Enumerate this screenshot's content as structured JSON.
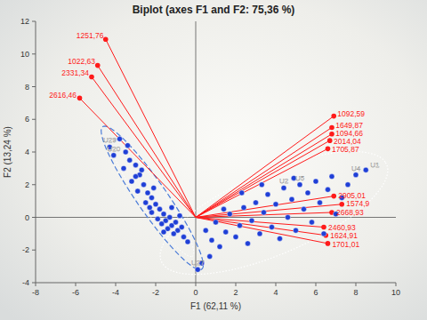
{
  "chart_data": {
    "type": "biplot",
    "title": "Biplot (axes F1 and F2: 75,36 %)",
    "x_label": "F1 (62,11 %)",
    "y_label": "F2 (13,24 %)",
    "xlim": [
      -8,
      10
    ],
    "xticks": [
      -8,
      -6,
      -4,
      -2,
      0,
      2,
      4,
      6,
      8,
      10
    ],
    "ylim": [
      -4,
      12
    ],
    "yticks": [
      -4,
      -2,
      0,
      2,
      4,
      6,
      8,
      10,
      12
    ],
    "grid": false,
    "color": "#1f3fd6",
    "marker": "circle",
    "x": [
      -4.3,
      -4.1,
      -3.8,
      -3.5,
      -3.3,
      -3.6,
      -3.0,
      -2.8,
      -3.2,
      -2.6,
      -2.9,
      -2.4,
      -2.2,
      -2.5,
      -2.0,
      -1.8,
      -2.2,
      -1.6,
      -1.9,
      -1.5,
      -1.3,
      -1.7,
      -1.2,
      -1.0,
      -1.4,
      -0.9,
      -0.7,
      -1.1,
      -0.6,
      -0.4,
      -2.7,
      -3.4,
      -1.2,
      -2.1,
      -0.8,
      -1.6,
      -3.0,
      -2.3,
      0.5,
      0.8,
      1.0,
      1.2,
      1.5,
      1.7,
      2.0,
      2.2,
      2.4,
      2.6,
      2.8,
      3.0,
      3.2,
      3.4,
      3.6,
      3.8,
      4.0,
      4.2,
      4.4,
      4.6,
      4.8,
      5.0,
      5.2,
      5.4,
      5.6,
      5.8,
      6.0,
      6.2,
      6.4,
      6.6,
      6.8,
      7.0,
      7.3,
      7.6,
      8.0,
      8.5,
      2.3,
      1.4,
      3.3,
      4.9,
      0.3,
      0.1,
      0.7
    ],
    "values": [
      4.3,
      3.8,
      4.8,
      4.0,
      3.5,
      3.0,
      3.2,
      2.6,
      2.2,
      2.0,
      1.6,
      1.5,
      1.2,
      0.9,
      0.8,
      0.5,
      0.3,
      0.2,
      -0.1,
      -0.2,
      0.0,
      -0.4,
      -0.5,
      -0.3,
      -0.7,
      -0.8,
      -0.6,
      -1.0,
      -1.2,
      -1.5,
      2.9,
      4.4,
      0.6,
      1.8,
      0.1,
      -0.9,
      2.5,
      0.6,
      -0.8,
      -1.4,
      -0.3,
      -1.8,
      -0.9,
      0.2,
      -1.2,
      -0.5,
      0.6,
      -1.6,
      -0.2,
      0.9,
      -1.0,
      0.3,
      1.4,
      -0.6,
      0.8,
      -1.3,
      1.8,
      0.0,
      1.1,
      -0.8,
      2.0,
      0.5,
      1.5,
      -0.3,
      2.2,
      0.9,
      -1.0,
      1.7,
      2.5,
      0.2,
      1.2,
      2.0,
      2.6,
      2.9,
      1.5,
      0.5,
      2.0,
      2.4,
      -2.8,
      -3.2,
      -2.4
    ],
    "point_labels": [
      "U29",
      "U20",
      null,
      null,
      null,
      null,
      null,
      null,
      null,
      null,
      null,
      null,
      null,
      null,
      null,
      null,
      null,
      null,
      null,
      null,
      null,
      null,
      null,
      null,
      null,
      null,
      null,
      null,
      null,
      null,
      null,
      null,
      null,
      null,
      null,
      null,
      null,
      null,
      null,
      null,
      null,
      null,
      null,
      null,
      null,
      null,
      null,
      null,
      null,
      null,
      null,
      null,
      null,
      null,
      null,
      null,
      "U2",
      null,
      null,
      null,
      "U5",
      null,
      null,
      null,
      null,
      null,
      null,
      null,
      null,
      null,
      null,
      null,
      "U4",
      "U1",
      null,
      null,
      null,
      null,
      null,
      "U27",
      null
    ],
    "vectors": {
      "color": "#ff1a1a",
      "labels": [
        "1251,76",
        "1022,63",
        "2331,34",
        "2616,46",
        "1092,59",
        "1649,87",
        "1094,66",
        "2014,04",
        "1705,87",
        "2905,01",
        "1574,9",
        "2668,93",
        "2460,93",
        "1624,91",
        "1701,01"
      ],
      "x": [
        -4.5,
        -4.9,
        -5.2,
        -5.8,
        6.9,
        6.8,
        6.8,
        6.7,
        6.6,
        6.9,
        7.3,
        6.8,
        6.4,
        6.5,
        6.6
      ],
      "y": [
        10.9,
        9.3,
        8.6,
        7.3,
        6.2,
        5.5,
        5.1,
        4.7,
        4.2,
        1.3,
        0.8,
        0.3,
        -0.6,
        -1.1,
        -1.6
      ]
    }
  }
}
